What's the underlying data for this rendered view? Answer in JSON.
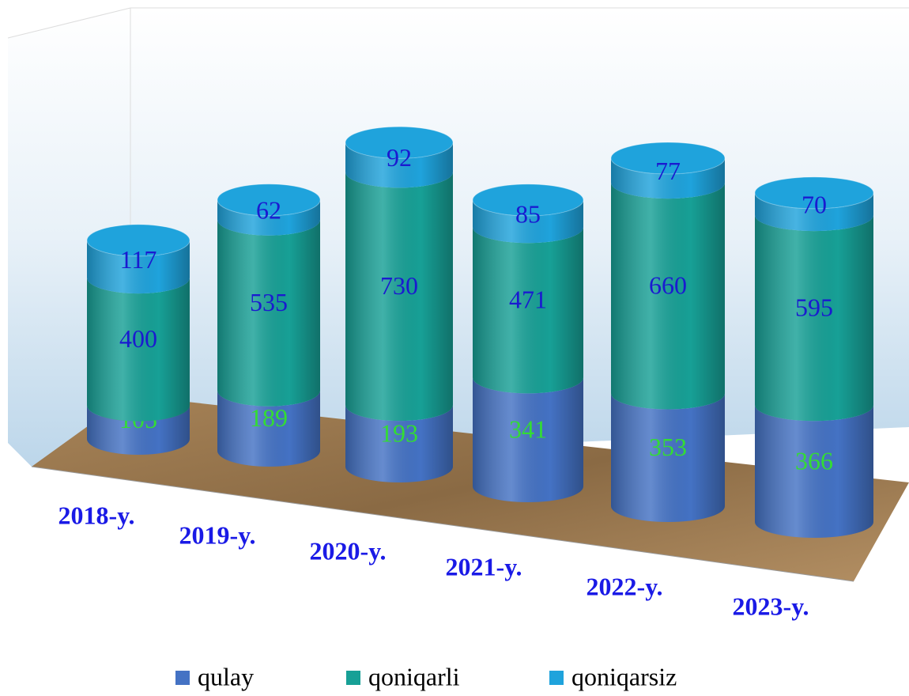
{
  "chart_data": {
    "type": "cylinder-stacked",
    "categories": [
      "2018-y.",
      "2019-y.",
      "2020-y.",
      "2021-y.",
      "2022-y.",
      "2023-y."
    ],
    "series": [
      {
        "name": "qulay",
        "color": "#4472c4",
        "label_color": "#33dd33",
        "values": [
          105,
          189,
          193,
          341,
          353,
          366
        ]
      },
      {
        "name": "qoniqarli",
        "color": "#17a096",
        "label_color": "#1a1ad0",
        "values": [
          400,
          535,
          730,
          471,
          660,
          595
        ]
      },
      {
        "name": "qoniqarsiz",
        "color": "#1fa3dc",
        "label_color": "#1a1ad0",
        "values": [
          117,
          62,
          92,
          85,
          77,
          70
        ]
      }
    ],
    "legend": "bottom"
  }
}
